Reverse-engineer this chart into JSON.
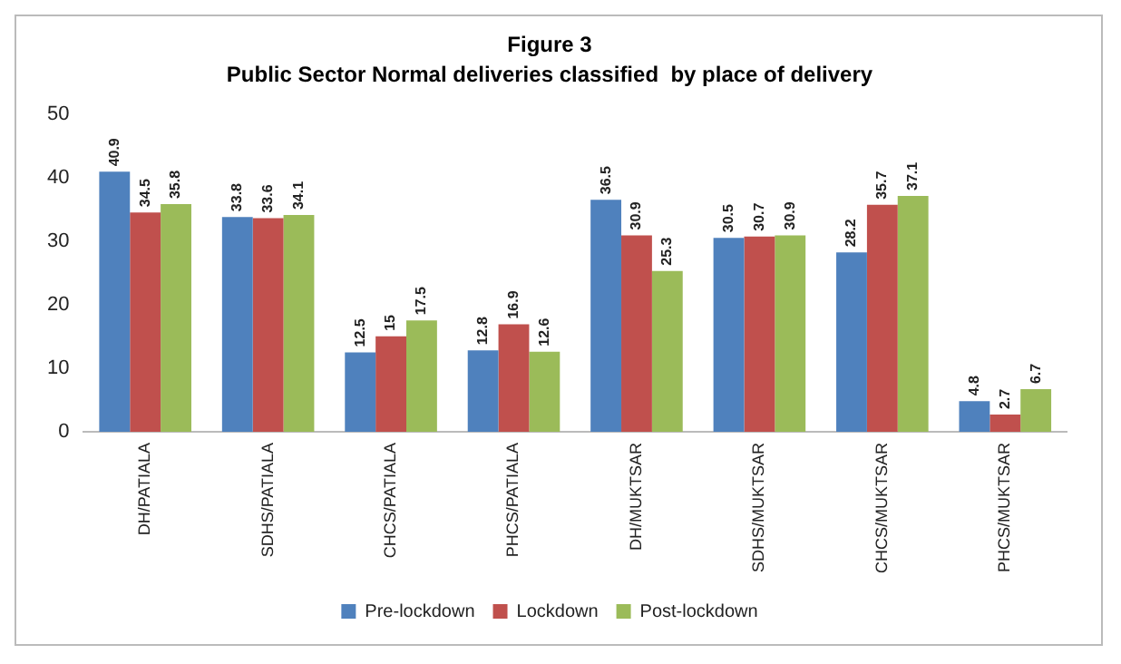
{
  "chart_data": {
    "type": "bar",
    "title": "Figure 3",
    "subtitle": "Public Sector Normal deliveries classified  by place of delivery",
    "categories": [
      "DH/PATIALA",
      "SDHS/PATIALA",
      "CHCS/PATIALA",
      "PHCS/PATIALA",
      "DH/MUKTSAR",
      "SDHS/MUKTSAR",
      "CHCS/MUKTSAR",
      "PHCS/MUKTSAR"
    ],
    "series": [
      {
        "name": "Pre-lockdown",
        "color": "#4f81bd",
        "values": [
          40.9,
          33.8,
          12.5,
          12.8,
          36.5,
          30.5,
          28.2,
          4.8
        ]
      },
      {
        "name": "Lockdown",
        "color": "#c0504d",
        "values": [
          34.5,
          33.6,
          15,
          16.9,
          30.9,
          30.7,
          35.7,
          2.7
        ]
      },
      {
        "name": "Post-lockdown",
        "color": "#9bbb59",
        "values": [
          35.8,
          34.1,
          17.5,
          12.6,
          25.3,
          30.9,
          37.1,
          6.7
        ]
      }
    ],
    "ylim": [
      0,
      50
    ],
    "yticks": [
      0,
      10,
      20,
      30,
      40,
      50
    ],
    "grid": false,
    "legend": "bottom",
    "data_labels": true
  }
}
